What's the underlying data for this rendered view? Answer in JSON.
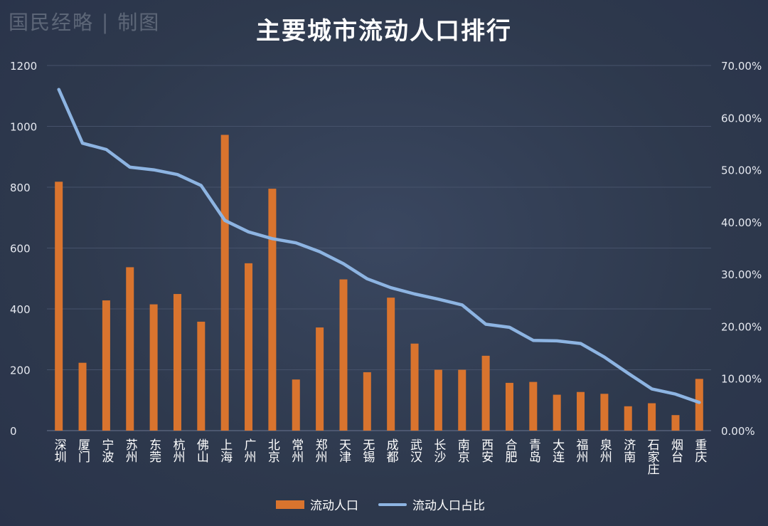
{
  "watermark": "国民经略 | 制图",
  "chart_data": {
    "type": "bar",
    "title": "主要城市流动人口排行",
    "categories": [
      "深圳",
      "厦门",
      "宁波",
      "苏州",
      "东莞",
      "杭州",
      "佛山",
      "上海",
      "广州",
      "北京",
      "常州",
      "郑州",
      "天津",
      "无锡",
      "成都",
      "武汉",
      "长沙",
      "南京",
      "西安",
      "合肥",
      "青岛",
      "大连",
      "福州",
      "泉州",
      "济南",
      "石家庄",
      "烟台",
      "重庆"
    ],
    "series": [
      {
        "name": "流动人口",
        "type": "bar",
        "axis": "left",
        "color": "#d9742e",
        "values": [
          818,
          223,
          428,
          537,
          415,
          449,
          358,
          972,
          550,
          795,
          168,
          339,
          497,
          192,
          437,
          286,
          200,
          200,
          246,
          157,
          160,
          118,
          127,
          121,
          80,
          90,
          51,
          170
        ]
      },
      {
        "name": "流动人口占比",
        "type": "line",
        "axis": "right",
        "color": "#8db4e2",
        "values": [
          65.4,
          55.1,
          53.9,
          50.5,
          50.0,
          49.1,
          47.0,
          40.3,
          38.1,
          36.8,
          36.0,
          34.3,
          32.0,
          29.1,
          27.4,
          26.2,
          25.2,
          24.1,
          20.4,
          19.8,
          17.3,
          17.2,
          16.7,
          14.1,
          11.0,
          8.0,
          7.0,
          5.4
        ]
      }
    ],
    "y_left": {
      "ylim": [
        0,
        1200
      ],
      "ticks": [
        "0",
        "200",
        "400",
        "600",
        "800",
        "1000",
        "1200"
      ]
    },
    "y_right": {
      "ylim": [
        0,
        70
      ],
      "ticks": [
        "0.00%",
        "10.00%",
        "20.00%",
        "30.00%",
        "40.00%",
        "50.00%",
        "60.00%",
        "70.00%"
      ]
    },
    "grid": true,
    "legend_position": "bottom"
  }
}
